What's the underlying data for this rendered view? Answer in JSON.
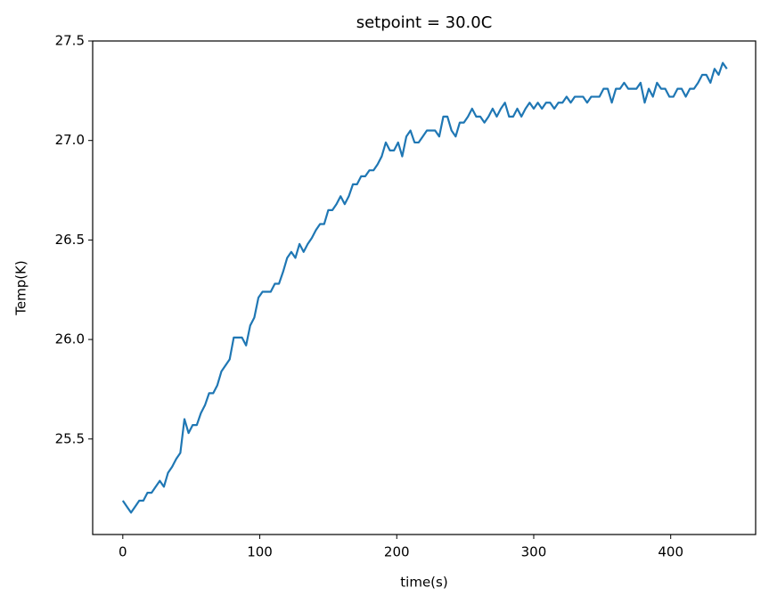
{
  "chart_data": {
    "type": "line",
    "title": "setpoint = 30.0C",
    "x_label": "time(s)",
    "y_label": "Temp(K)",
    "color": "#1f77b4",
    "x": [
      0,
      3,
      6,
      9,
      12,
      15,
      18,
      21,
      24,
      27,
      30,
      33,
      36,
      39,
      42,
      45,
      48,
      51,
      54,
      57,
      60,
      63,
      66,
      69,
      72,
      75,
      78,
      81,
      84,
      87,
      90,
      93,
      96,
      99,
      102,
      105,
      108,
      111,
      114,
      117,
      120,
      123,
      126,
      129,
      132,
      135,
      138,
      141,
      144,
      147,
      150,
      153,
      156,
      159,
      162,
      165,
      168,
      171,
      174,
      177,
      180,
      183,
      186,
      189,
      192,
      195,
      198,
      201,
      204,
      207,
      210,
      213,
      216,
      219,
      222,
      225,
      228,
      231,
      234,
      237,
      240,
      243,
      246,
      249,
      252,
      255,
      258,
      261,
      264,
      267,
      270,
      273,
      276,
      279,
      282,
      285,
      288,
      291,
      294,
      297,
      300,
      303,
      306,
      309,
      312,
      315,
      318,
      321,
      324,
      327,
      330,
      333,
      336,
      339,
      342,
      345,
      348,
      351,
      354,
      357,
      360,
      363,
      366,
      369,
      372,
      375,
      378,
      381,
      384,
      387,
      390,
      393,
      396,
      399,
      402,
      405,
      408,
      411,
      414,
      417,
      420,
      423,
      426,
      429,
      432,
      435,
      438,
      441
    ],
    "values": [
      25.19,
      25.16,
      25.13,
      25.16,
      25.19,
      25.19,
      25.23,
      25.23,
      25.26,
      25.29,
      25.26,
      25.33,
      25.36,
      25.4,
      25.43,
      25.6,
      25.53,
      25.57,
      25.57,
      25.63,
      25.67,
      25.73,
      25.73,
      25.77,
      25.84,
      25.87,
      25.9,
      26.01,
      26.01,
      26.01,
      25.97,
      26.07,
      26.11,
      26.21,
      26.24,
      26.24,
      26.24,
      26.28,
      26.28,
      26.34,
      26.41,
      26.44,
      26.41,
      26.48,
      26.44,
      26.48,
      26.51,
      26.55,
      26.58,
      26.58,
      26.65,
      26.65,
      26.68,
      26.72,
      26.68,
      26.72,
      26.78,
      26.78,
      26.82,
      26.82,
      26.85,
      26.85,
      26.88,
      26.92,
      26.99,
      26.95,
      26.95,
      26.99,
      26.92,
      27.02,
      27.05,
      26.99,
      26.99,
      27.02,
      27.05,
      27.05,
      27.05,
      27.02,
      27.12,
      27.12,
      27.05,
      27.02,
      27.09,
      27.09,
      27.12,
      27.16,
      27.12,
      27.12,
      27.09,
      27.12,
      27.16,
      27.12,
      27.16,
      27.19,
      27.12,
      27.12,
      27.16,
      27.12,
      27.16,
      27.19,
      27.16,
      27.19,
      27.16,
      27.19,
      27.19,
      27.16,
      27.19,
      27.19,
      27.22,
      27.19,
      27.22,
      27.22,
      27.22,
      27.19,
      27.22,
      27.22,
      27.22,
      27.26,
      27.26,
      27.19,
      27.26,
      27.26,
      27.29,
      27.26,
      27.26,
      27.26,
      27.29,
      27.19,
      27.26,
      27.22,
      27.29,
      27.26,
      27.26,
      27.22,
      27.22,
      27.26,
      27.26,
      27.22,
      27.26,
      27.26,
      27.29,
      27.33,
      27.33,
      27.29,
      27.36,
      27.33,
      27.39,
      27.36
    ],
    "xlim": [
      -22,
      462
    ],
    "xticks": [
      0,
      100,
      200,
      300,
      400
    ],
    "ylim": [
      25.02,
      27.5
    ],
    "yticks": [
      25.5,
      {
        "value": 26,
        "label": "26.0"
      },
      26.5,
      {
        "value": 27,
        "label": "27.0"
      },
      27.5
    ]
  }
}
